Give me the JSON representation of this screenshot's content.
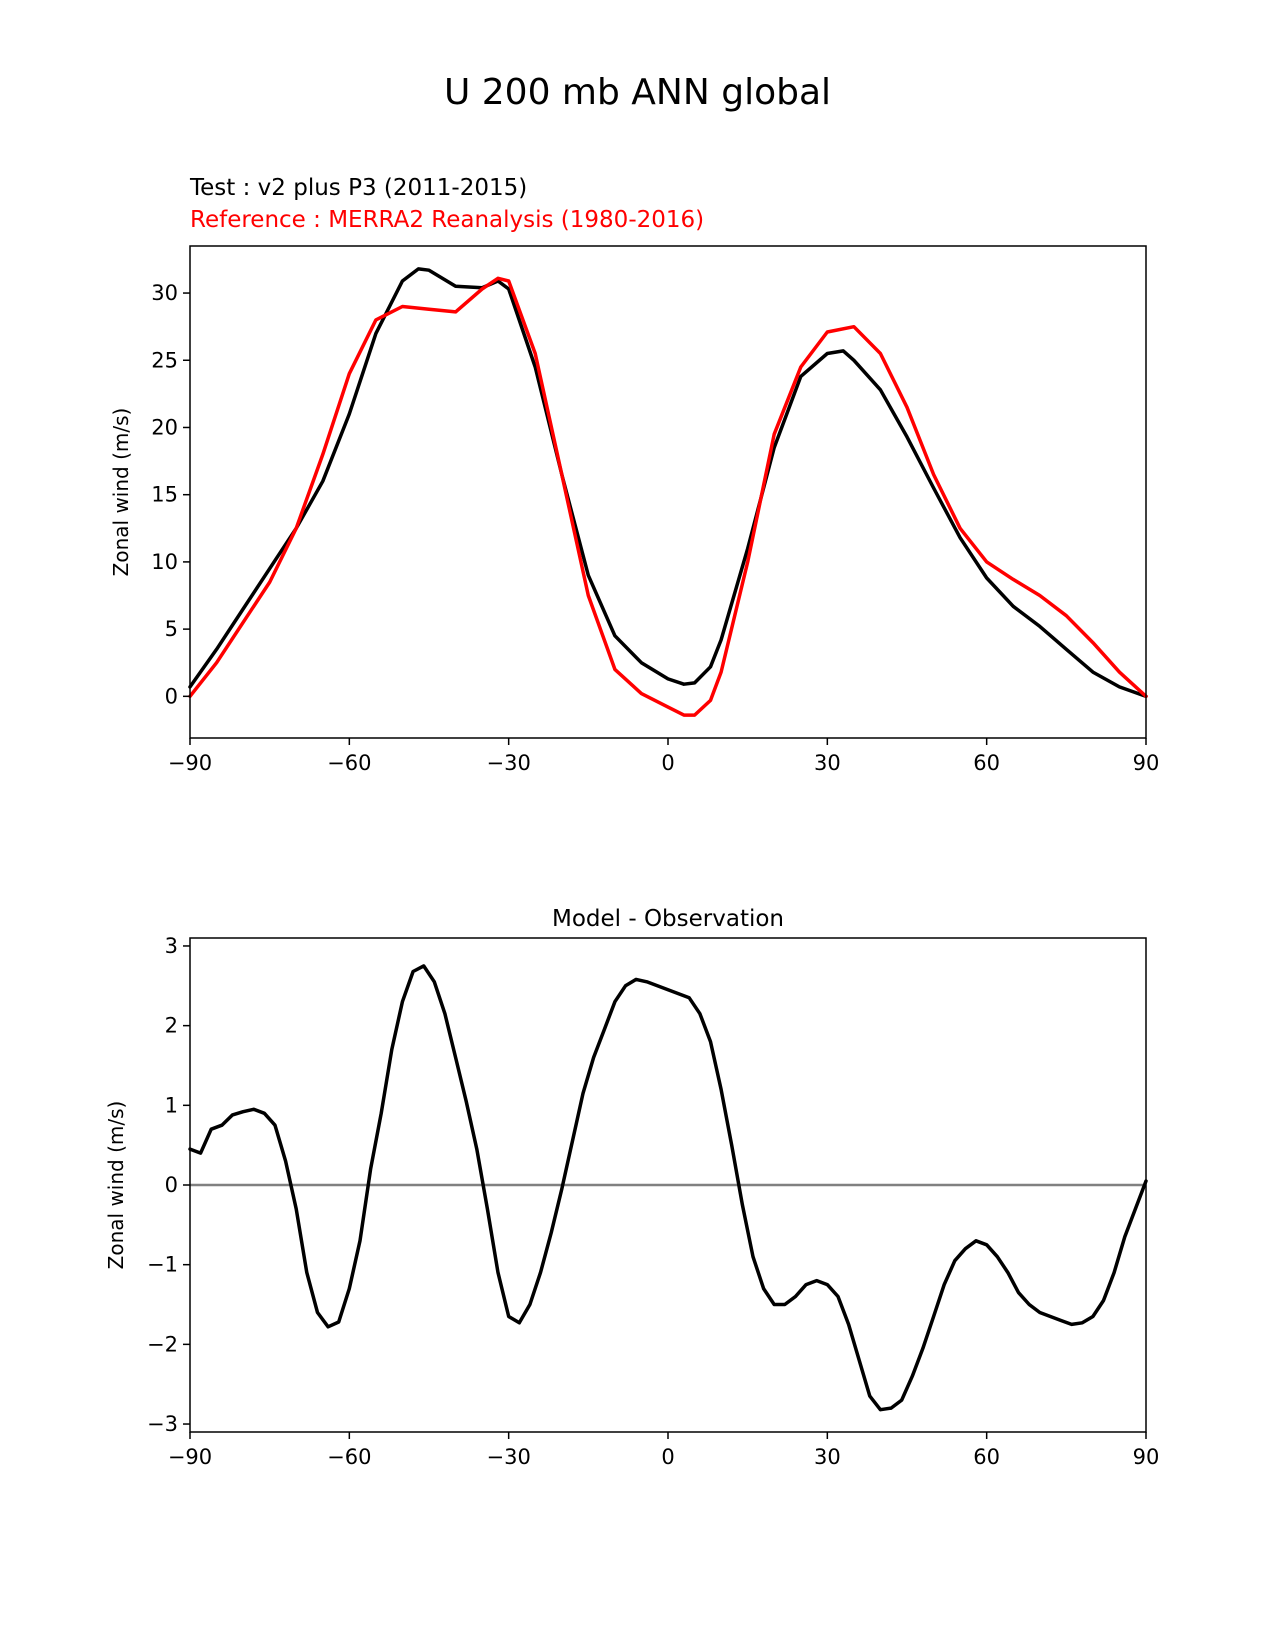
{
  "figure": {
    "suptitle": "U 200 mb ANN global",
    "legend": {
      "test": "Test : v2 plus P3 (2011-2015)",
      "reference": "Reference : MERRA2 Reanalysis (1980-2016)"
    }
  },
  "colors": {
    "test": "#000000",
    "reference": "#ff0000",
    "zero_line": "#808080"
  },
  "chart_data": [
    {
      "type": "line",
      "title": "",
      "xlabel": "",
      "ylabel": "Zonal wind (m/s)",
      "xlim": [
        -90,
        90
      ],
      "ylim": [
        -3.1,
        33.5
      ],
      "xticks": [
        -90,
        -60,
        -30,
        0,
        30,
        60,
        90
      ],
      "xticklabels": [
        "−90",
        "−60",
        "−30",
        "0",
        "30",
        "60",
        "90"
      ],
      "yticks": [
        0,
        5,
        10,
        15,
        20,
        25,
        30
      ],
      "yticklabels": [
        "0",
        "5",
        "10",
        "15",
        "20",
        "25",
        "30"
      ],
      "series": [
        {
          "name": "Test : v2 plus P3 (2011-2015)",
          "color": "#000000",
          "x": [
            -90,
            -85,
            -80,
            -75,
            -70,
            -65,
            -60,
            -55,
            -50,
            -47,
            -45,
            -40,
            -35,
            -32,
            -30,
            -25,
            -20,
            -15,
            -10,
            -5,
            0,
            3,
            5,
            8,
            10,
            15,
            20,
            25,
            30,
            33,
            35,
            40,
            45,
            50,
            55,
            60,
            65,
            70,
            75,
            80,
            85,
            90
          ],
          "y": [
            0.7,
            3.5,
            6.5,
            9.5,
            12.5,
            16,
            21,
            27,
            30.9,
            31.8,
            31.7,
            30.5,
            30.4,
            30.9,
            30.3,
            24.5,
            16.5,
            9,
            4.5,
            2.5,
            1.3,
            0.9,
            1,
            2.2,
            4.2,
            11,
            18.5,
            23.8,
            25.5,
            25.7,
            25,
            22.8,
            19.3,
            15.5,
            11.8,
            8.8,
            6.7,
            5.2,
            3.5,
            1.8,
            0.7,
            0
          ]
        },
        {
          "name": "Reference : MERRA2 Reanalysis (1980-2016)",
          "color": "#ff0000",
          "x": [
            -90,
            -85,
            -80,
            -75,
            -70,
            -65,
            -60,
            -55,
            -50,
            -45,
            -40,
            -35,
            -32,
            -30,
            -25,
            -20,
            -15,
            -10,
            -5,
            0,
            3,
            5,
            8,
            10,
            15,
            20,
            25,
            30,
            35,
            40,
            45,
            50,
            55,
            60,
            65,
            70,
            75,
            80,
            85,
            90
          ],
          "y": [
            0,
            2.5,
            5.5,
            8.5,
            12.5,
            18,
            24,
            28,
            29,
            28.8,
            28.6,
            30.3,
            31.1,
            30.9,
            25.5,
            16.5,
            7.5,
            2,
            0.2,
            -0.8,
            -1.4,
            -1.4,
            -0.3,
            1.8,
            10,
            19.5,
            24.5,
            27.1,
            27.5,
            25.5,
            21.5,
            16.5,
            12.5,
            10,
            8.7,
            7.5,
            6,
            4,
            1.8,
            0
          ]
        }
      ]
    },
    {
      "type": "line",
      "title": "Model - Observation",
      "xlabel": "",
      "ylabel": "Zonal wind (m/s)",
      "xlim": [
        -90,
        90
      ],
      "ylim": [
        -3.1,
        3.1
      ],
      "xticks": [
        -90,
        -60,
        -30,
        0,
        30,
        60,
        90
      ],
      "xticklabels": [
        "−90",
        "−60",
        "−30",
        "0",
        "30",
        "60",
        "90"
      ],
      "yticks": [
        -3,
        -2,
        -1,
        0,
        1,
        2,
        3
      ],
      "yticklabels": [
        "−3",
        "−2",
        "−1",
        "0",
        "1",
        "2",
        "3"
      ],
      "zero_line": true,
      "series": [
        {
          "name": "Model - Observation",
          "color": "#000000",
          "x": [
            -90,
            -88,
            -86,
            -84,
            -82,
            -80,
            -78,
            -76,
            -74,
            -72,
            -70,
            -68,
            -66,
            -64,
            -62,
            -60,
            -58,
            -56,
            -54,
            -52,
            -50,
            -48,
            -46,
            -44,
            -42,
            -40,
            -38,
            -36,
            -34,
            -32,
            -30,
            -28,
            -26,
            -24,
            -22,
            -20,
            -18,
            -16,
            -14,
            -12,
            -10,
            -8,
            -6,
            -4,
            -2,
            0,
            2,
            4,
            6,
            8,
            10,
            12,
            14,
            16,
            18,
            20,
            22,
            24,
            26,
            28,
            30,
            32,
            34,
            36,
            38,
            40,
            42,
            44,
            46,
            48,
            50,
            52,
            54,
            56,
            58,
            60,
            62,
            64,
            66,
            68,
            70,
            72,
            74,
            76,
            78,
            80,
            82,
            84,
            86,
            88,
            90
          ],
          "y": [
            0.45,
            0.4,
            0.7,
            0.75,
            0.88,
            0.92,
            0.95,
            0.9,
            0.75,
            0.3,
            -0.3,
            -1.1,
            -1.6,
            -1.78,
            -1.72,
            -1.3,
            -0.7,
            0.2,
            0.9,
            1.7,
            2.3,
            2.68,
            2.75,
            2.55,
            2.15,
            1.6,
            1.05,
            0.45,
            -0.3,
            -1.1,
            -1.65,
            -1.73,
            -1.5,
            -1.1,
            -0.6,
            -0.05,
            0.55,
            1.15,
            1.6,
            1.95,
            2.3,
            2.5,
            2.58,
            2.55,
            2.5,
            2.45,
            2.4,
            2.35,
            2.15,
            1.8,
            1.2,
            0.5,
            -0.25,
            -0.9,
            -1.3,
            -1.5,
            -1.5,
            -1.4,
            -1.25,
            -1.2,
            -1.25,
            -1.4,
            -1.75,
            -2.2,
            -2.65,
            -2.82,
            -2.8,
            -2.7,
            -2.4,
            -2.05,
            -1.65,
            -1.25,
            -0.95,
            -0.8,
            -0.7,
            -0.75,
            -0.9,
            -1.1,
            -1.35,
            -1.5,
            -1.6,
            -1.65,
            -1.7,
            -1.75,
            -1.73,
            -1.65,
            -1.45,
            -1.1,
            -0.65,
            -0.3,
            0.05
          ]
        }
      ]
    }
  ]
}
